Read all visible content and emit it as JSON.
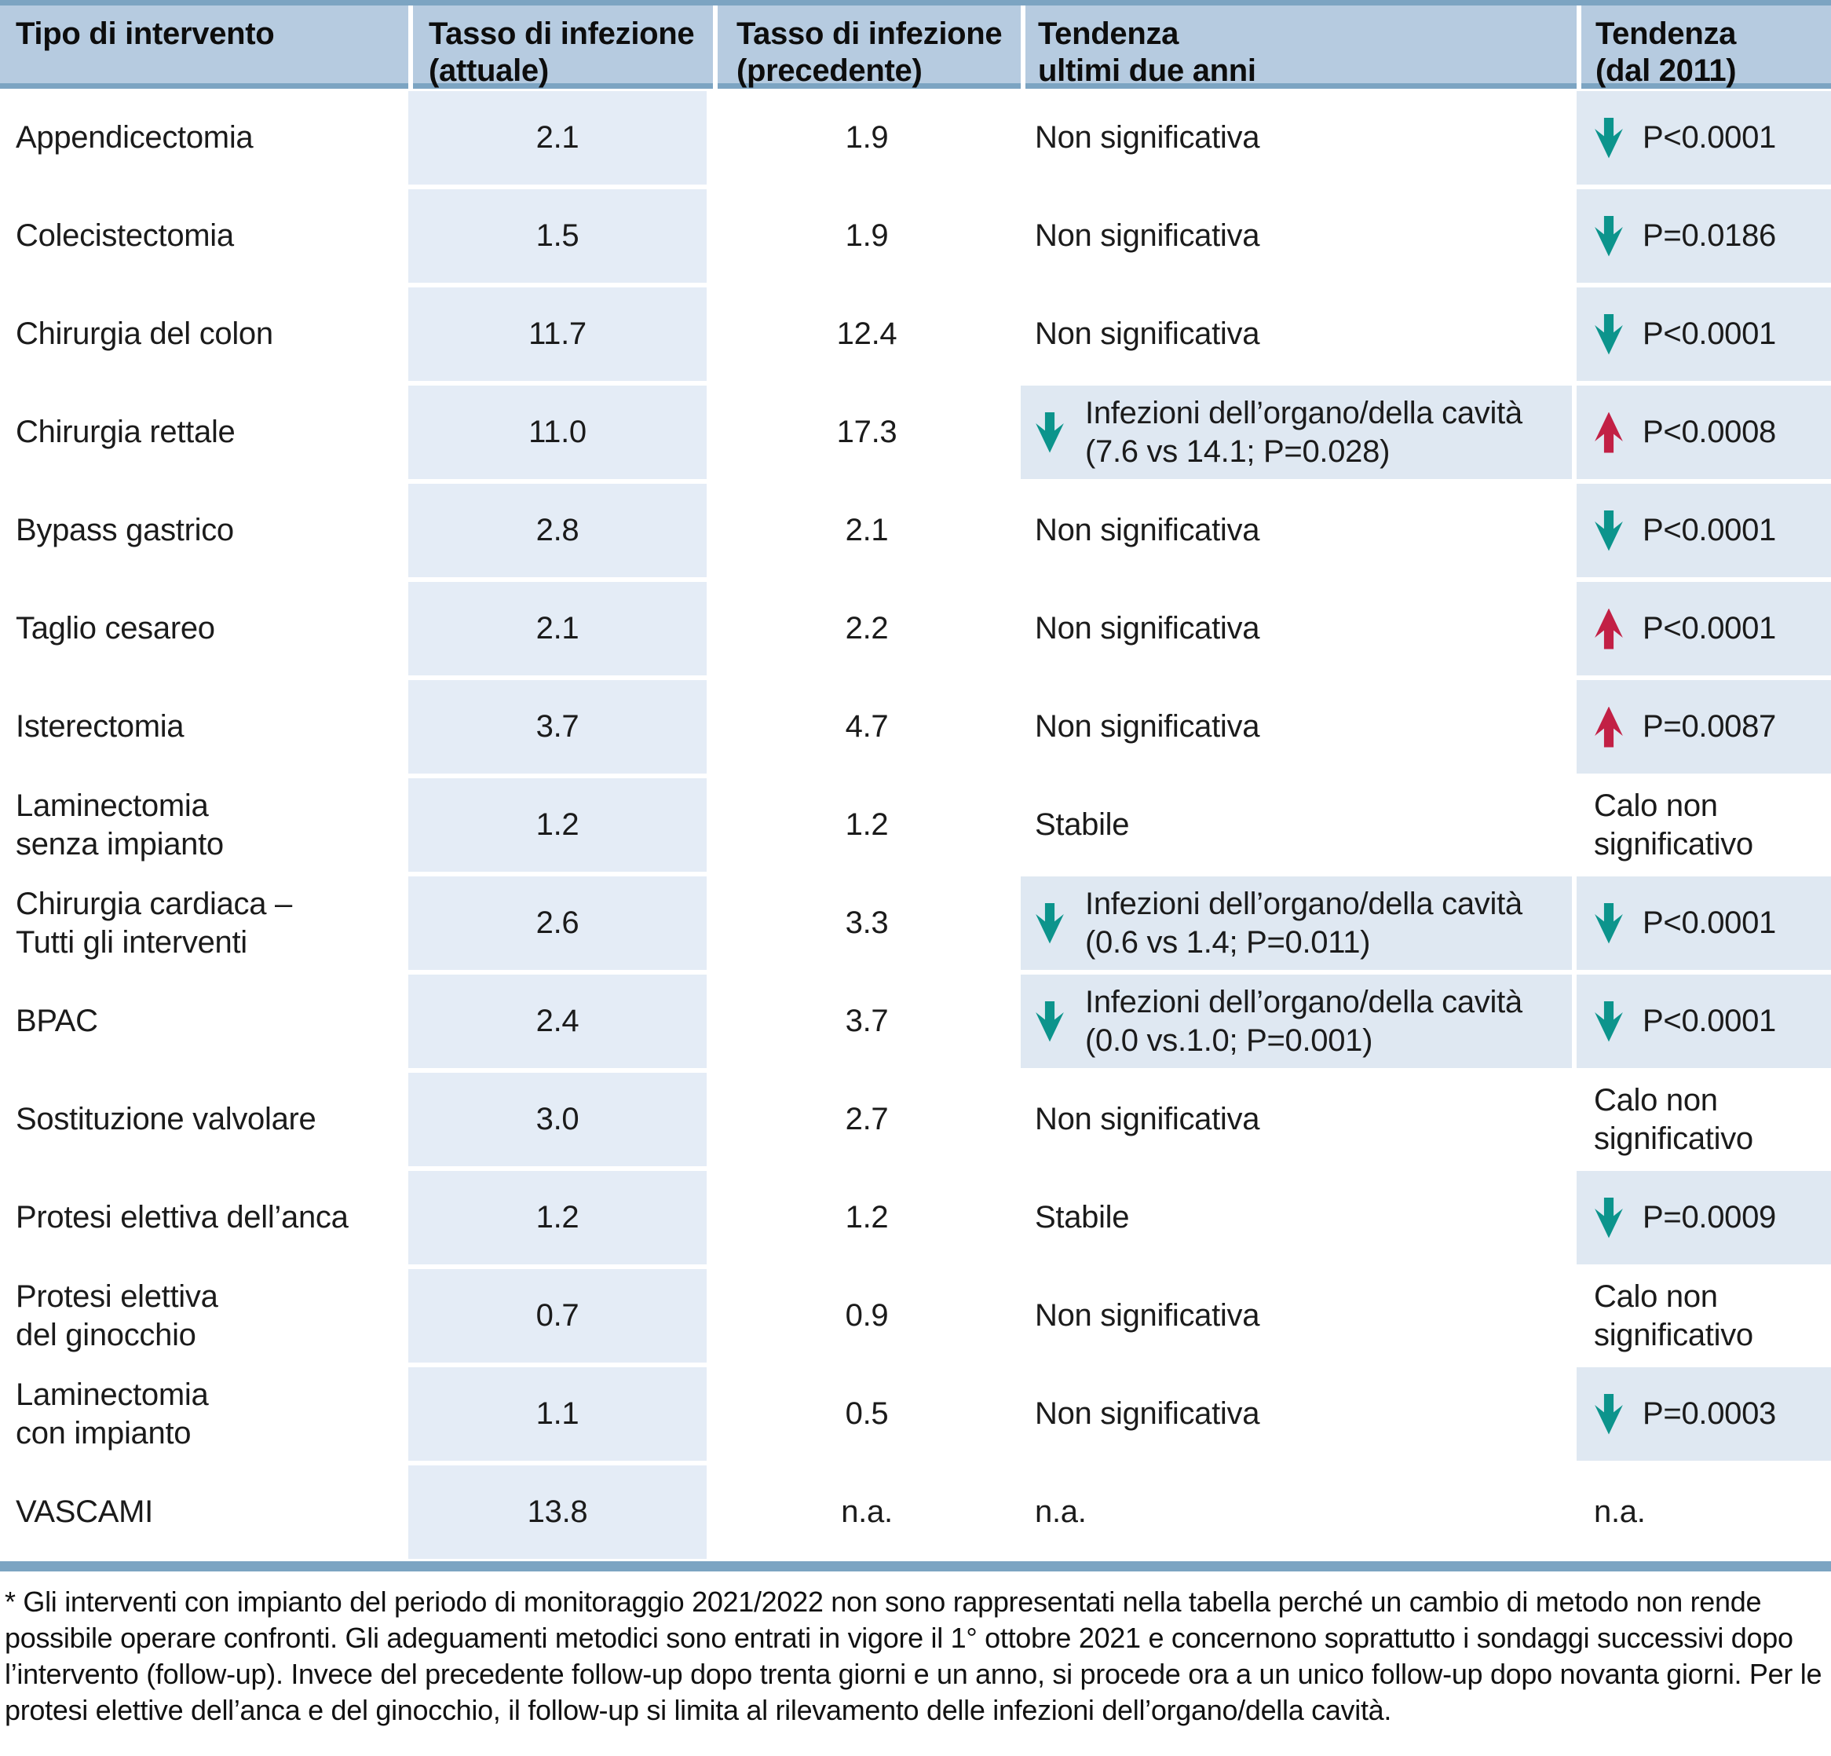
{
  "colors": {
    "header_bg": "#b6cbe0",
    "rule_blue": "#7ca4c2",
    "cell_fill_current": "#e4ecf6",
    "cell_fill_trend": "#dfe8f2",
    "arrow_teal": "#0c948c",
    "arrow_red": "#c22045"
  },
  "header": {
    "col1": "Tipo di intervento",
    "col2": "Tasso di infezione\n(attuale)",
    "col3": "Tasso di infezione\n(precedente)",
    "col4": "Tendenza\nultimi due anni",
    "col5": "Tendenza\n(dal 2011)"
  },
  "rows": [
    {
      "name": "Appendicectomia",
      "attuale": "2.1",
      "precedente": "1.9",
      "trend2y": {
        "highlight": false,
        "arrow": "none",
        "text": "Non significativa"
      },
      "trend2011": {
        "highlight": true,
        "arrow": "down-teal",
        "text": "P<0.0001"
      }
    },
    {
      "name": "Colecistectomia",
      "attuale": "1.5",
      "precedente": "1.9",
      "trend2y": {
        "highlight": false,
        "arrow": "none",
        "text": "Non significativa"
      },
      "trend2011": {
        "highlight": true,
        "arrow": "down-teal",
        "text": "P=0.0186"
      }
    },
    {
      "name": "Chirurgia del colon",
      "attuale": "11.7",
      "precedente": "12.4",
      "trend2y": {
        "highlight": false,
        "arrow": "none",
        "text": "Non significativa"
      },
      "trend2011": {
        "highlight": true,
        "arrow": "down-teal",
        "text": "P<0.0001"
      }
    },
    {
      "name": "Chirurgia rettale",
      "attuale": "11.0",
      "precedente": "17.3",
      "trend2y": {
        "highlight": true,
        "arrow": "down-teal",
        "text": "Infezioni dell’organo/della cavità\n(7.6 vs 14.1; P=0.028)"
      },
      "trend2011": {
        "highlight": true,
        "arrow": "up-red",
        "text": "P<0.0008"
      }
    },
    {
      "name": "Bypass gastrico",
      "attuale": "2.8",
      "precedente": "2.1",
      "trend2y": {
        "highlight": false,
        "arrow": "none",
        "text": "Non significativa"
      },
      "trend2011": {
        "highlight": true,
        "arrow": "down-teal",
        "text": "P<0.0001"
      }
    },
    {
      "name": "Taglio cesareo",
      "attuale": "2.1",
      "precedente": "2.2",
      "trend2y": {
        "highlight": false,
        "arrow": "none",
        "text": "Non significativa"
      },
      "trend2011": {
        "highlight": true,
        "arrow": "up-red",
        "text": "P<0.0001"
      }
    },
    {
      "name": "Isterectomia",
      "attuale": "3.7",
      "precedente": "4.7",
      "trend2y": {
        "highlight": false,
        "arrow": "none",
        "text": "Non significativa"
      },
      "trend2011": {
        "highlight": true,
        "arrow": "up-red",
        "text": "P=0.0087"
      }
    },
    {
      "name": "Laminectomia\nsenza impianto",
      "attuale": "1.2",
      "precedente": "1.2",
      "trend2y": {
        "highlight": false,
        "arrow": "none",
        "text": "Stabile"
      },
      "trend2011": {
        "highlight": false,
        "arrow": "none",
        "text": "Calo non\nsignificativo"
      }
    },
    {
      "name": "Chirurgia cardiaca –\nTutti gli interventi",
      "attuale": "2.6",
      "precedente": "3.3",
      "trend2y": {
        "highlight": true,
        "arrow": "down-teal",
        "text": "Infezioni dell’organo/della cavità\n(0.6 vs 1.4; P=0.011)"
      },
      "trend2011": {
        "highlight": true,
        "arrow": "down-teal",
        "text": "P<0.0001"
      }
    },
    {
      "name": "BPAC",
      "attuale": "2.4",
      "precedente": "3.7",
      "trend2y": {
        "highlight": true,
        "arrow": "down-teal",
        "text": "Infezioni dell’organo/della cavità\n(0.0 vs.1.0; P=0.001)"
      },
      "trend2011": {
        "highlight": true,
        "arrow": "down-teal",
        "text": "P<0.0001"
      }
    },
    {
      "name": "Sostituzione valvolare",
      "attuale": "3.0",
      "precedente": "2.7",
      "trend2y": {
        "highlight": false,
        "arrow": "none",
        "text": "Non significativa"
      },
      "trend2011": {
        "highlight": false,
        "arrow": "none",
        "text": "Calo non\nsignificativo"
      }
    },
    {
      "name": "Protesi elettiva dell’anca",
      "attuale": "1.2",
      "precedente": "1.2",
      "trend2y": {
        "highlight": false,
        "arrow": "none",
        "text": "Stabile"
      },
      "trend2011": {
        "highlight": true,
        "arrow": "down-teal",
        "text": "P=0.0009"
      }
    },
    {
      "name": "Protesi elettiva\ndel ginocchio",
      "attuale": "0.7",
      "precedente": "0.9",
      "trend2y": {
        "highlight": false,
        "arrow": "none",
        "text": "Non significativa"
      },
      "trend2011": {
        "highlight": false,
        "arrow": "none",
        "text": "Calo non\nsignificativo"
      }
    },
    {
      "name": "Laminectomia\ncon impianto",
      "attuale": "1.1",
      "precedente": "0.5",
      "trend2y": {
        "highlight": false,
        "arrow": "none",
        "text": "Non significativa"
      },
      "trend2011": {
        "highlight": true,
        "arrow": "down-teal",
        "text": "P=0.0003"
      }
    },
    {
      "name": "VASCAMI",
      "attuale": "13.8",
      "precedente": "n.a.",
      "trend2y": {
        "highlight": false,
        "arrow": "none",
        "text": "n.a."
      },
      "trend2011": {
        "highlight": false,
        "arrow": "none",
        "text": "n.a."
      }
    }
  ],
  "footnote": "* Gli interventi con impianto del periodo di monitoraggio 2021/2022 non sono rappresentati nella tabella perché un cambio di metodo non rende possibile operare confronti. Gli adeguamenti metodici sono entrati in vigore il 1° ottobre 2021 e concernono soprattutto i sondaggi successivi dopo l’intervento (follow-up). Invece del precedente follow-up dopo trenta giorni e un anno, si procede ora a un unico follow-up dopo novanta giorni. Per le protesi elettive dell’anca e del ginocchio, il follow-up si limita al rilevamento delle infezioni dell’organo/della cavità."
}
